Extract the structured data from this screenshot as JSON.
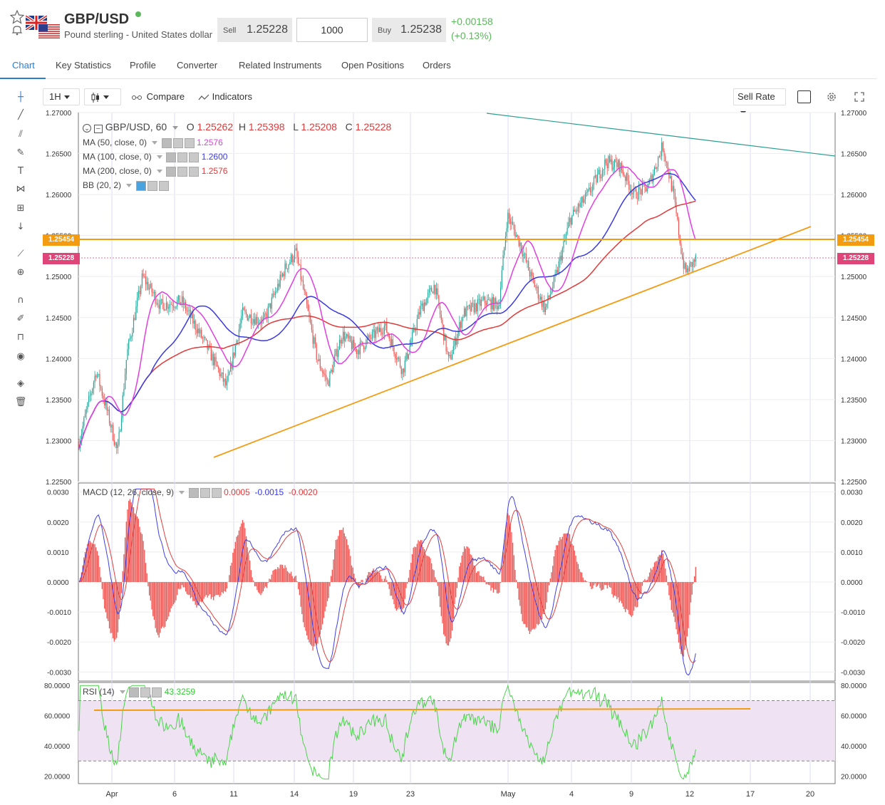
{
  "instrument": {
    "symbol": "GBP/USD",
    "description": "Pound sterling - United States dollar",
    "sell_label": "Sell",
    "sell_price": "1.25228",
    "quantity": "1000",
    "buy_label": "Buy",
    "buy_price": "1.25238",
    "change_abs": "+0.00158",
    "change_pct": "(+0.13%)",
    "status_color": "#5cb85c"
  },
  "tabs": [
    {
      "label": "Chart",
      "active": true
    },
    {
      "label": "Key Statistics"
    },
    {
      "label": "Profile"
    },
    {
      "label": "Converter"
    },
    {
      "label": "Related Instruments"
    },
    {
      "label": "Open Positions"
    },
    {
      "label": "Orders"
    }
  ],
  "toolbar": {
    "interval": "1H",
    "compare_label": "Compare",
    "indicators_label": "Indicators",
    "rate_select": "Sell Rate"
  },
  "sidebar_icons": [
    "crosshair-icon",
    "trend-line-icon",
    "fib-icon",
    "brush-icon",
    "text-icon",
    "pattern-icon",
    "measure-icon",
    "arrow-down-icon",
    "ruler-icon",
    "zoom-icon",
    "magnet-icon",
    "lock-draw-icon",
    "lock-icon",
    "eye-icon",
    "layers-icon",
    "trash-icon"
  ],
  "legend": {
    "title": "GBP/USD, 60",
    "o_label": "O",
    "o": "1.25262",
    "h_label": "H",
    "h": "1.25398",
    "l_label": "L",
    "l": "1.25208",
    "c_label": "C",
    "c": "1.25228",
    "ma50_label": "MA (50, close, 0)",
    "ma50": "1.2576",
    "ma100_label": "MA (100, close, 0)",
    "ma100": "1.2600",
    "ma200_label": "MA (200, close, 0)",
    "ma200": "1.2576",
    "bb_label": "BB (20, 2)",
    "macd_label": "MACD (12, 26, close, 9)",
    "macd_v1": "0.0005",
    "macd_v2": "-0.0015",
    "macd_v3": "-0.0020",
    "rsi_label": "RSI (14)",
    "rsi_value": "43.3259"
  },
  "price_tags": {
    "level": "1.25454",
    "last": "1.25228"
  },
  "chart_data": [
    {
      "type": "line",
      "title": "GBP/USD, 60",
      "y_ticks": [
        "1.27000",
        "1.26500",
        "1.26000",
        "1.25500",
        "1.25000",
        "1.24500",
        "1.24000",
        "1.23500",
        "1.23000",
        "1.22500"
      ],
      "ylim": [
        1.225,
        1.27
      ],
      "x_ticks": [
        "Apr",
        "6",
        "11",
        "14",
        "19",
        "23",
        "May",
        "4",
        "9",
        "12",
        "17",
        "20"
      ],
      "series": [
        {
          "name": "MA (50, close, 0)",
          "color": "#e040e0",
          "last": 1.2576
        },
        {
          "name": "MA (100, close, 0)",
          "color": "#3a3ae0",
          "last": 1.26
        },
        {
          "name": "MA (200, close, 0)",
          "color": "#e03a3a",
          "last": 1.2576
        }
      ],
      "horizontal_line": 1.25454,
      "last_price": 1.25228
    },
    {
      "type": "bar",
      "title": "MACD (12, 26, close, 9)",
      "y_ticks": [
        "0.0030",
        "0.0020",
        "0.0010",
        "0.0000",
        "-0.0010",
        "-0.0020",
        "-0.0030"
      ],
      "ylim": [
        -0.003,
        0.003
      ]
    },
    {
      "type": "line",
      "title": "RSI (14)",
      "y_ticks": [
        "80.0000",
        "60.0000",
        "40.0000",
        "20.0000"
      ],
      "ylim": [
        20,
        80
      ],
      "bands": [
        30,
        70
      ],
      "last": 43.3259
    }
  ],
  "colors": {
    "accent": "#2b7cd3",
    "up": "#26a69a",
    "down": "#ef5350",
    "orange": "#f39c12",
    "teal_line": "#2a9d8f"
  }
}
